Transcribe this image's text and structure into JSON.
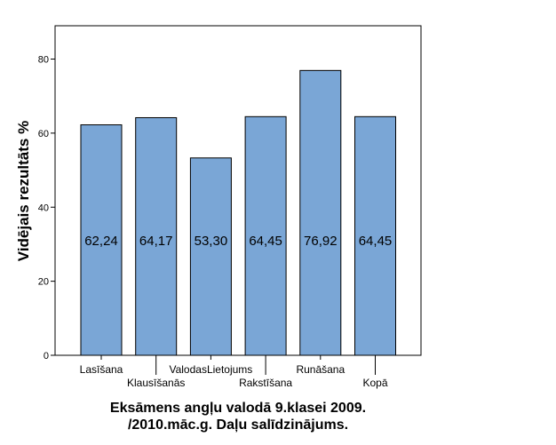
{
  "chart_data": {
    "type": "bar",
    "title": "Eksāmens angļu valodā 9.klasei 2009. /2010.māc.g. Daļu salīdzinājums.",
    "title_lines": [
      "Eksāmens angļu valodā 9.klasei 2009.",
      "/2010.māc.g. Daļu salīdzinājums."
    ],
    "xlabel": "",
    "ylabel": "Vidējais rezultāts %",
    "categories": [
      "Lasīšana",
      "Klausīšanās",
      "ValodasLietojums",
      "Rakstīšana",
      "Runāšana",
      "Kopā"
    ],
    "values": [
      62.24,
      64.17,
      53.3,
      64.45,
      76.92,
      64.45
    ],
    "value_labels": [
      "62,24",
      "64,17",
      "53,30",
      "64,45",
      "76,92",
      "64,45"
    ],
    "ylim": [
      0,
      90
    ],
    "yticks": [
      0,
      20,
      40,
      60,
      80
    ],
    "grid": false,
    "legend": "none",
    "bar_color": "#7aa6d6"
  }
}
